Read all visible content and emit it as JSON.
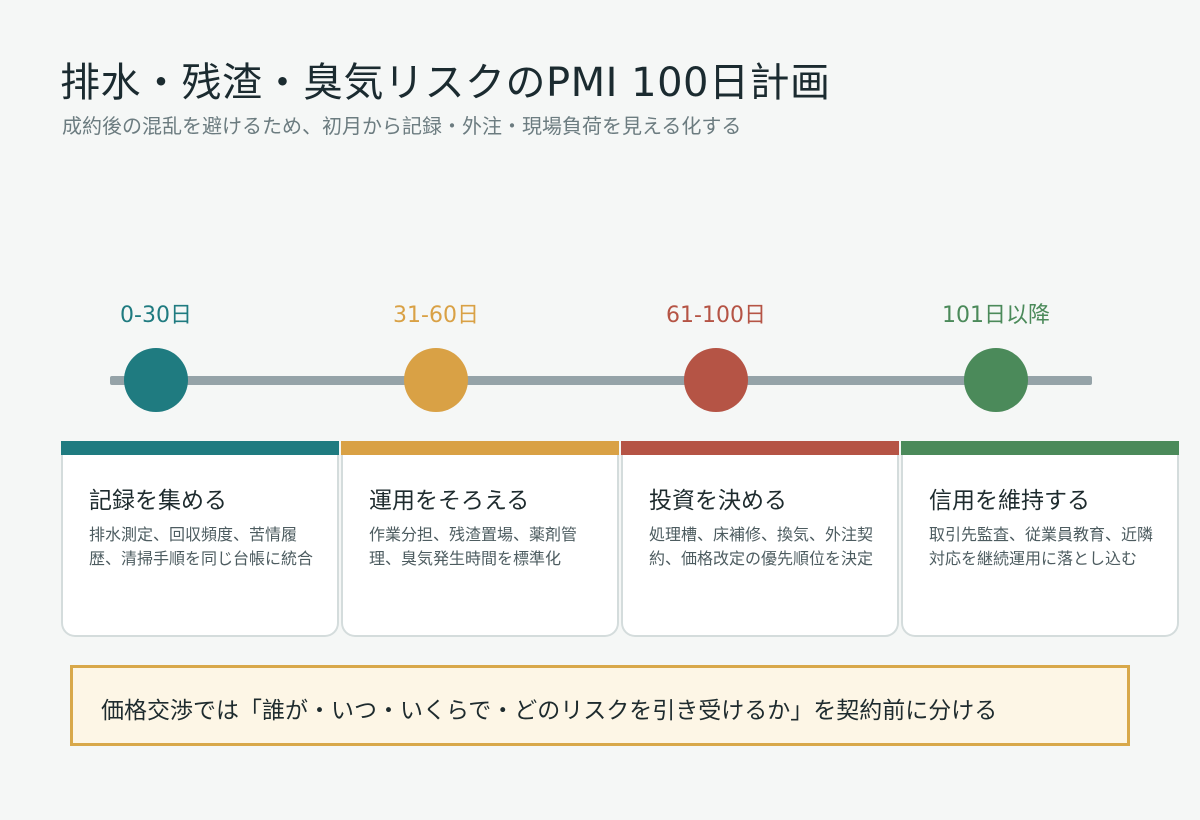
{
  "header": {
    "title": "排水・残渣・臭気リスクのPMI 100日計画",
    "subtitle": "成約後の混乱を避けるため、初月から記録・外注・現場負荷を見える化する"
  },
  "phases": [
    {
      "period": "0-30日",
      "title": "記録を集める",
      "description": "排水測定、回収頻度、苦情履歴、清掃手順を同じ台帳に統合",
      "color": "#1f7b80"
    },
    {
      "period": "31-60日",
      "title": "運用をそろえる",
      "description": "作業分担、残渣置場、薬剤管理、臭気発生時間を標準化",
      "color": "#d9a145"
    },
    {
      "period": "61-100日",
      "title": "投資を決める",
      "description": "処理槽、床補修、換気、外注契約、価格改定の優先順位を決定",
      "color": "#b55445"
    },
    {
      "period": "101日以降",
      "title": "信用を維持する",
      "description": "取引先監査、従業員教育、近隣対応を継続運用に落とし込む",
      "color": "#4b8a5a"
    }
  ],
  "note": {
    "text": "価格交渉では「誰が・いつ・いくらで・どのリスクを引き受けるか」を契約前に分ける"
  }
}
